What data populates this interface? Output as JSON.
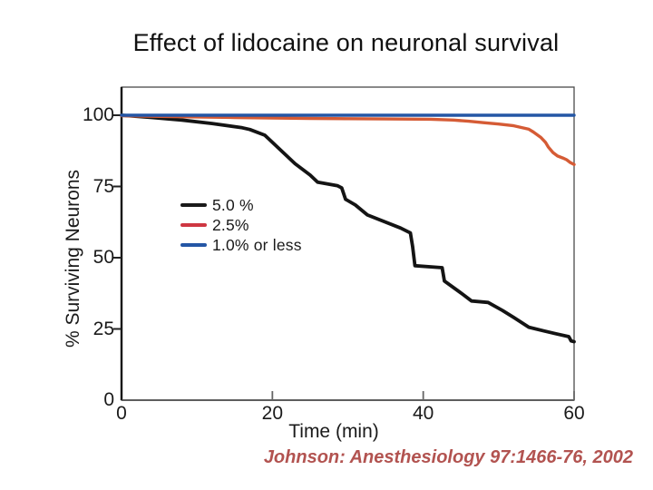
{
  "slide": {
    "title": "Effect of lidocaine on neuronal survival",
    "citation": "Johnson: Anesthesiology 97:1466-76, 2002",
    "citation_color": "#b25350"
  },
  "chart_data": {
    "type": "line",
    "title": "",
    "xlabel": "Time (min)",
    "ylabel": "% Surviving Neurons",
    "xlim": [
      0,
      60
    ],
    "ylim": [
      0,
      100
    ],
    "x_ticks": [
      0,
      20,
      40,
      60
    ],
    "y_ticks": [
      0,
      25,
      50,
      75,
      100
    ],
    "grid": false,
    "legend_position": "inside-left-middle",
    "series": [
      {
        "name": "5.0 %",
        "color": "#141414",
        "legend_color": "#1a1a1a",
        "points": [
          [
            0,
            100
          ],
          [
            4,
            99.2
          ],
          [
            8,
            98.3
          ],
          [
            12,
            97.1
          ],
          [
            16,
            95.6
          ],
          [
            17,
            95
          ],
          [
            19,
            93
          ],
          [
            23,
            83
          ],
          [
            25,
            79
          ],
          [
            26,
            76.5
          ],
          [
            28.6,
            75.3
          ],
          [
            29.2,
            74.5
          ],
          [
            29.7,
            70.5
          ],
          [
            31,
            68.5
          ],
          [
            32.6,
            65
          ],
          [
            37,
            60.4
          ],
          [
            38.3,
            58.7
          ],
          [
            38.6,
            53.8
          ],
          [
            38.9,
            47.2
          ],
          [
            42.5,
            46.5
          ],
          [
            42.8,
            41.8
          ],
          [
            45,
            37.6
          ],
          [
            46.4,
            34.8
          ],
          [
            48.6,
            34.3
          ],
          [
            50.5,
            31.5
          ],
          [
            52,
            29
          ],
          [
            54,
            25.6
          ],
          [
            56,
            24.3
          ],
          [
            57.6,
            23.3
          ],
          [
            59.3,
            22.3
          ],
          [
            59.6,
            20.8
          ],
          [
            60,
            20.5
          ]
        ]
      },
      {
        "name": "2.5%",
        "color": "#d55b35",
        "legend_color": "#ce3742",
        "points": [
          [
            0,
            99.8
          ],
          [
            5,
            99.6
          ],
          [
            10,
            99.4
          ],
          [
            15,
            99.2
          ],
          [
            20,
            99
          ],
          [
            25,
            98.9
          ],
          [
            30,
            98.8
          ],
          [
            35,
            98.7
          ],
          [
            41,
            98.6
          ],
          [
            44,
            98.3
          ],
          [
            46,
            97.9
          ],
          [
            48,
            97.4
          ],
          [
            50,
            96.9
          ],
          [
            52,
            96.3
          ],
          [
            54,
            95.1
          ],
          [
            54.6,
            94.1
          ],
          [
            55.6,
            92.2
          ],
          [
            56.2,
            90.5
          ],
          [
            56.6,
            88.8
          ],
          [
            57.2,
            86.9
          ],
          [
            57.8,
            85.7
          ],
          [
            58.5,
            85
          ],
          [
            59,
            84.4
          ],
          [
            59.5,
            83.4
          ],
          [
            60,
            82.7
          ]
        ]
      },
      {
        "name": "1.0% or less",
        "color": "#2456a5",
        "legend_color": "#2456a5",
        "points": [
          [
            0,
            100
          ],
          [
            60,
            100
          ]
        ]
      }
    ]
  }
}
